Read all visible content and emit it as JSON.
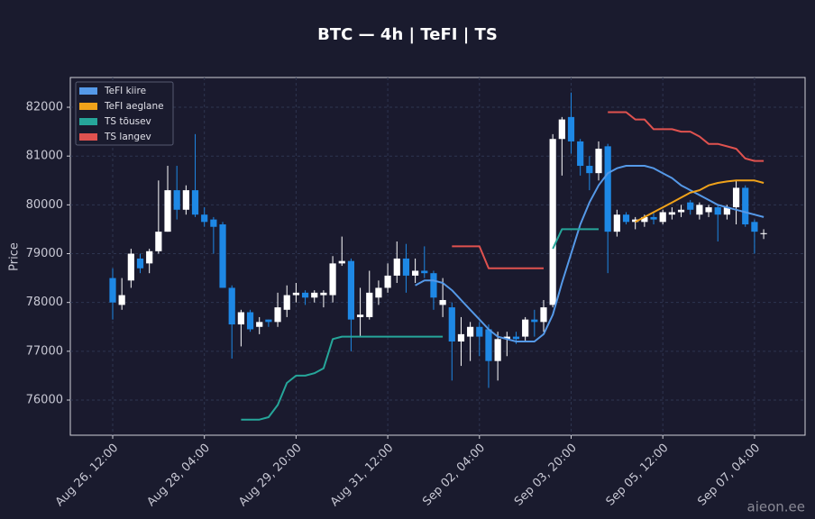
{
  "chart_data": {
    "type": "candlestick",
    "title": "BTC — 4h  |  TeFI  |  TS",
    "y_label": "Price",
    "watermark": "aieon.ee",
    "ylim": [
      75280,
      82610
    ],
    "yticks": [
      76000,
      77000,
      78000,
      79000,
      80000,
      81000,
      82000
    ],
    "grid": true,
    "legend": "upper left",
    "up_color": "#ffffff",
    "down_color": "#1e88e5",
    "categories": [
      "Aug 26, 12:00",
      null,
      null,
      null,
      null,
      null,
      null,
      null,
      null,
      null,
      "Aug 28, 04:00",
      null,
      null,
      null,
      null,
      null,
      null,
      null,
      null,
      null,
      "Aug 29, 20:00",
      null,
      null,
      null,
      null,
      null,
      null,
      null,
      null,
      null,
      "Aug 31, 12:00",
      null,
      null,
      null,
      null,
      null,
      null,
      null,
      null,
      null,
      "Sep 02, 04:00",
      null,
      null,
      null,
      null,
      null,
      null,
      null,
      null,
      null,
      "Sep 03, 20:00",
      null,
      null,
      null,
      null,
      null,
      null,
      null,
      null,
      null,
      "Sep 05, 12:00",
      null,
      null,
      null,
      null,
      null,
      null,
      null,
      null,
      null,
      "Sep 07, 04:00",
      null
    ],
    "open": [
      78500,
      77950,
      78450,
      78900,
      78800,
      79050,
      79450,
      80300,
      79900,
      80300,
      79800,
      79700,
      79600,
      78300,
      77550,
      77800,
      77500,
      77650,
      77600,
      77850,
      78150,
      78200,
      78100,
      78150,
      78150,
      78800,
      78850,
      77700,
      77700,
      78100,
      78300,
      78550,
      78900,
      78550,
      78650,
      78600,
      77950,
      77900,
      77200,
      77300,
      77500,
      77450,
      76800,
      77250,
      77300,
      77300,
      77650,
      77600,
      77950,
      81350,
      81800,
      81300,
      80800,
      80650,
      81200,
      79450,
      79800,
      79650,
      79650,
      79750,
      79650,
      79800,
      79850,
      80050,
      79800,
      79850,
      79950,
      79800,
      79950,
      80350,
      79650,
      79400
    ],
    "high": [
      78700,
      78500,
      79100,
      79000,
      79100,
      80500,
      80800,
      80800,
      80400,
      81450,
      79950,
      79750,
      79650,
      78350,
      77850,
      77850,
      77700,
      77650,
      78200,
      78350,
      78400,
      78250,
      78250,
      78250,
      78950,
      79350,
      78900,
      78300,
      78650,
      78450,
      78800,
      79250,
      79200,
      78900,
      79150,
      78650,
      78500,
      78000,
      77700,
      77600,
      77600,
      77550,
      77400,
      77400,
      77400,
      77700,
      77850,
      78050,
      81450,
      81800,
      82300,
      81350,
      81000,
      81300,
      81250,
      79900,
      79850,
      79750,
      79800,
      79850,
      79900,
      79950,
      80000,
      80100,
      80050,
      80000,
      80000,
      80000,
      80500,
      80400,
      79700,
      79500
    ],
    "low": [
      77650,
      77850,
      78300,
      78600,
      78600,
      79000,
      79450,
      79700,
      79800,
      79750,
      79550,
      79000,
      78300,
      76850,
      77100,
      77400,
      77350,
      77500,
      77500,
      77700,
      78000,
      77950,
      78000,
      77900,
      78000,
      78750,
      77000,
      77300,
      77650,
      77950,
      78200,
      78400,
      78200,
      78400,
      78500,
      77850,
      77700,
      76400,
      76700,
      76800,
      76900,
      76250,
      76400,
      76900,
      77150,
      77200,
      77300,
      77400,
      77900,
      80600,
      81050,
      80600,
      80300,
      80500,
      78600,
      79350,
      79600,
      79500,
      79550,
      79600,
      79600,
      79700,
      79750,
      79800,
      79700,
      79750,
      79250,
      79700,
      79600,
      79550,
      79000,
      79300
    ],
    "close": [
      78000,
      78150,
      79000,
      78700,
      79050,
      79450,
      80300,
      79900,
      80300,
      79800,
      79650,
      79550,
      78300,
      77550,
      77800,
      77450,
      77600,
      77600,
      77900,
      78150,
      78200,
      78100,
      78200,
      78200,
      78800,
      78850,
      77650,
      77750,
      78200,
      78300,
      78550,
      78900,
      78550,
      78650,
      78600,
      78100,
      78050,
      77200,
      77350,
      77500,
      77300,
      76800,
      77250,
      77300,
      77250,
      77650,
      77600,
      77900,
      81350,
      81750,
      81300,
      80800,
      80650,
      81150,
      79450,
      79800,
      79650,
      79700,
      79750,
      79700,
      79850,
      79850,
      79900,
      79900,
      80000,
      79950,
      79800,
      79950,
      80350,
      79600,
      79450,
      79420
    ],
    "series": [
      {
        "name": "TeFI kiire",
        "color": "#5599e8",
        "values": [
          null,
          null,
          null,
          null,
          null,
          null,
          null,
          null,
          null,
          null,
          null,
          null,
          null,
          null,
          null,
          null,
          null,
          null,
          null,
          null,
          null,
          null,
          null,
          null,
          null,
          null,
          null,
          null,
          null,
          null,
          null,
          null,
          null,
          78350,
          78450,
          78450,
          78400,
          78250,
          78050,
          77850,
          77650,
          77450,
          77300,
          77250,
          77200,
          77200,
          77200,
          77350,
          77750,
          78400,
          79000,
          79600,
          80050,
          80400,
          80650,
          80750,
          80800,
          80800,
          80800,
          80750,
          80650,
          80550,
          80400,
          80300,
          80200,
          80100,
          80000,
          79950,
          79900,
          79850,
          79800,
          79750
        ]
      },
      {
        "name": "TeFI aeglane",
        "color": "#f0a21a",
        "values": [
          null,
          null,
          null,
          null,
          null,
          null,
          null,
          null,
          null,
          null,
          null,
          null,
          null,
          null,
          null,
          null,
          null,
          null,
          null,
          null,
          null,
          null,
          null,
          null,
          null,
          null,
          null,
          null,
          null,
          null,
          null,
          null,
          null,
          null,
          null,
          null,
          null,
          null,
          null,
          null,
          null,
          null,
          null,
          null,
          null,
          null,
          null,
          null,
          null,
          null,
          null,
          null,
          null,
          null,
          null,
          null,
          null,
          79650,
          79750,
          79850,
          79950,
          80050,
          80150,
          80250,
          80300,
          80400,
          80450,
          80480,
          80500,
          80500,
          80500,
          80450
        ]
      },
      {
        "name": "TS tõusev",
        "color": "#26a69a",
        "values": [
          null,
          null,
          null,
          null,
          null,
          null,
          null,
          null,
          null,
          null,
          null,
          null,
          null,
          null,
          75600,
          75600,
          75600,
          75650,
          75900,
          76350,
          76500,
          76500,
          76550,
          76650,
          77250,
          77300,
          77300,
          77300,
          77300,
          77300,
          77300,
          77300,
          77300,
          77300,
          77300,
          77300,
          77300,
          null,
          null,
          null,
          null,
          null,
          null,
          null,
          null,
          null,
          null,
          null,
          79100,
          79500,
          79500,
          79500,
          79500,
          79500,
          null,
          null,
          null,
          null,
          null,
          null,
          null,
          null,
          null,
          null,
          null,
          null,
          null,
          null,
          null,
          null,
          null,
          null
        ]
      },
      {
        "name": "TS langev",
        "color": "#e0524f",
        "values": [
          null,
          null,
          null,
          null,
          null,
          null,
          null,
          null,
          null,
          null,
          null,
          null,
          null,
          null,
          null,
          null,
          null,
          null,
          null,
          null,
          null,
          null,
          null,
          null,
          null,
          null,
          null,
          null,
          null,
          null,
          null,
          null,
          null,
          null,
          null,
          null,
          null,
          79150,
          79150,
          79150,
          79150,
          78700,
          78700,
          78700,
          78700,
          78700,
          78700,
          78700,
          null,
          null,
          null,
          null,
          null,
          null,
          81900,
          81900,
          81900,
          81750,
          81750,
          81550,
          81550,
          81550,
          81500,
          81500,
          81400,
          81250,
          81250,
          81200,
          81150,
          80950,
          80900,
          80900
        ]
      }
    ]
  }
}
